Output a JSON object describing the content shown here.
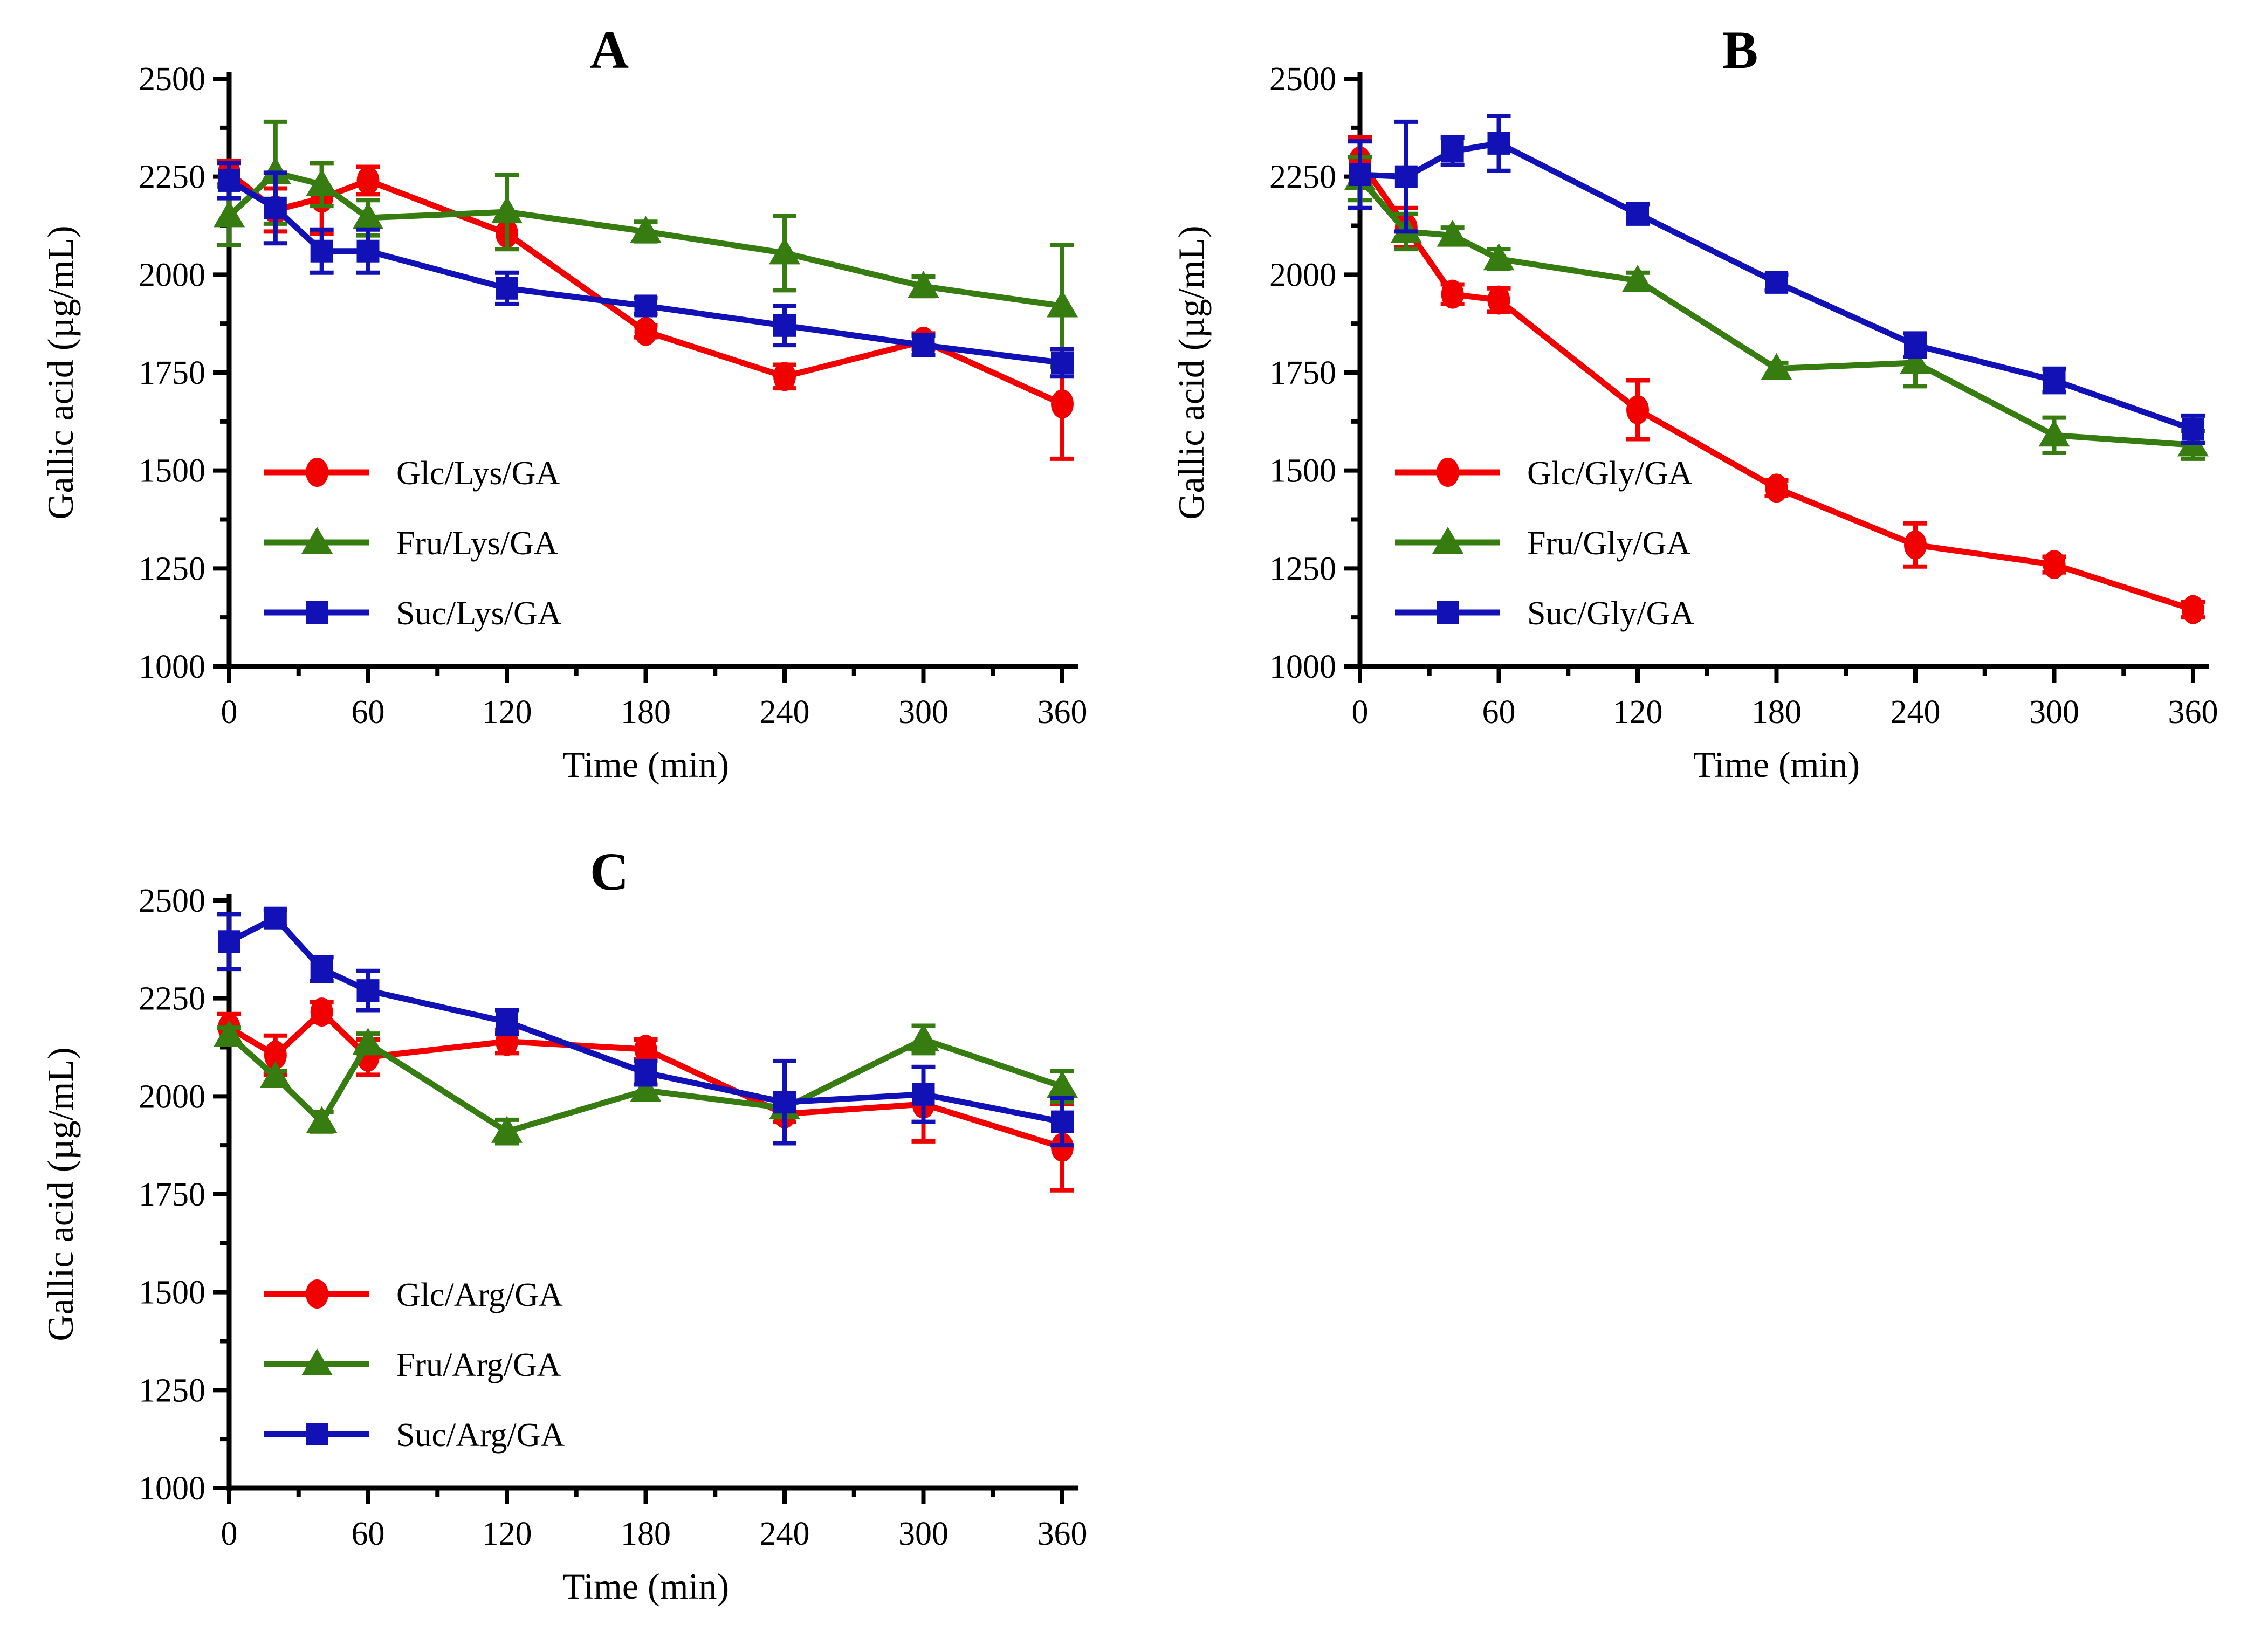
{
  "page": {
    "background": "#ffffff"
  },
  "colors": {
    "red": "#f20000",
    "green": "#367c11",
    "blue": "#1111b5",
    "axis": "#000000"
  },
  "shared": {
    "ylabel": "Gallic acid (µg/mL)",
    "xlabel": "Time (min)",
    "x_major_ticks": [
      0,
      60,
      120,
      180,
      240,
      300,
      360
    ],
    "x_minor_ticks": [
      30,
      90,
      150,
      210,
      270,
      330
    ],
    "y_major_ticks": [
      1000,
      1250,
      1500,
      1750,
      2000,
      2250,
      2500
    ],
    "y_minor_ticks": [
      1125,
      1375,
      1625,
      1875,
      2125,
      2375
    ],
    "xlim": [
      0,
      360
    ],
    "ylim": [
      1000,
      2500
    ],
    "grid": "off",
    "legend_position": "lower-left"
  },
  "chart_data": [
    {
      "type": "line",
      "title": "A",
      "xlabel": "Time (min)",
      "ylabel": "Gallic acid (µg/mL)",
      "x": [
        0,
        20,
        40,
        60,
        120,
        180,
        240,
        300,
        360
      ],
      "series": [
        {
          "name": "Glc/Lys/GA",
          "color_key": "red",
          "marker": "circle",
          "values": [
            2260,
            2165,
            2195,
            2240,
            2105,
            1855,
            1740,
            1830,
            1670
          ],
          "errors": [
            30,
            55,
            90,
            35,
            40,
            15,
            30,
            20,
            140
          ]
        },
        {
          "name": "Fru/Lys/GA",
          "color_key": "green",
          "marker": "triangle",
          "values": [
            2150,
            2260,
            2230,
            2145,
            2160,
            2110,
            2055,
            1970,
            1920
          ],
          "errors": [
            75,
            130,
            55,
            45,
            95,
            25,
            95,
            25,
            155
          ]
        },
        {
          "name": "Suc/Lys/GA",
          "color_key": "blue",
          "marker": "square",
          "values": [
            2240,
            2170,
            2060,
            2060,
            1965,
            1920,
            1870,
            1820,
            1775
          ],
          "errors": [
            45,
            90,
            55,
            55,
            40,
            20,
            50,
            25,
            35
          ]
        }
      ]
    },
    {
      "type": "line",
      "title": "B",
      "xlabel": "Time (min)",
      "ylabel": "Gallic acid (µg/mL)",
      "x": [
        0,
        20,
        40,
        60,
        120,
        180,
        240,
        300,
        360
      ],
      "series": [
        {
          "name": "Glc/Gly/GA",
          "color_key": "red",
          "marker": "circle",
          "values": [
            2290,
            2120,
            1950,
            1935,
            1655,
            1455,
            1310,
            1260,
            1145
          ],
          "errors": [
            60,
            50,
            25,
            30,
            75,
            20,
            55,
            20,
            20
          ]
        },
        {
          "name": "Fru/Gly/GA",
          "color_key": "green",
          "marker": "triangle",
          "values": [
            2245,
            2110,
            2100,
            2040,
            1985,
            1760,
            1775,
            1590,
            1565
          ],
          "errors": [
            55,
            45,
            20,
            25,
            20,
            15,
            60,
            45,
            35
          ]
        },
        {
          "name": "Suc/Gly/GA",
          "color_key": "blue",
          "marker": "square",
          "values": [
            2255,
            2250,
            2315,
            2335,
            2155,
            1980,
            1820,
            1730,
            1605
          ],
          "errors": [
            85,
            140,
            35,
            70,
            25,
            20,
            30,
            30,
            35
          ]
        }
      ]
    },
    {
      "type": "line",
      "title": "C",
      "xlabel": "Time (min)",
      "ylabel": "Gallic acid (µg/mL)",
      "x": [
        0,
        20,
        40,
        60,
        120,
        180,
        240,
        300,
        360
      ],
      "series": [
        {
          "name": "Glc/Arg/GA",
          "color_key": "red",
          "marker": "circle",
          "values": [
            2175,
            2105,
            2215,
            2100,
            2140,
            2120,
            1955,
            1980,
            1870
          ],
          "errors": [
            35,
            50,
            25,
            45,
            30,
            25,
            20,
            95,
            110
          ]
        },
        {
          "name": "Fru/Arg/GA",
          "color_key": "green",
          "marker": "triangle",
          "values": [
            2155,
            2050,
            1935,
            2135,
            1910,
            2015,
            1970,
            2145,
            2025
          ],
          "errors": [
            20,
            15,
            25,
            25,
            30,
            15,
            20,
            35,
            40
          ]
        },
        {
          "name": "Suc/Arg/GA",
          "color_key": "blue",
          "marker": "square",
          "values": [
            2395,
            2455,
            2325,
            2270,
            2190,
            2060,
            1985,
            2005,
            1935
          ],
          "errors": [
            70,
            20,
            30,
            50,
            30,
            30,
            105,
            70,
            60
          ]
        }
      ]
    }
  ]
}
